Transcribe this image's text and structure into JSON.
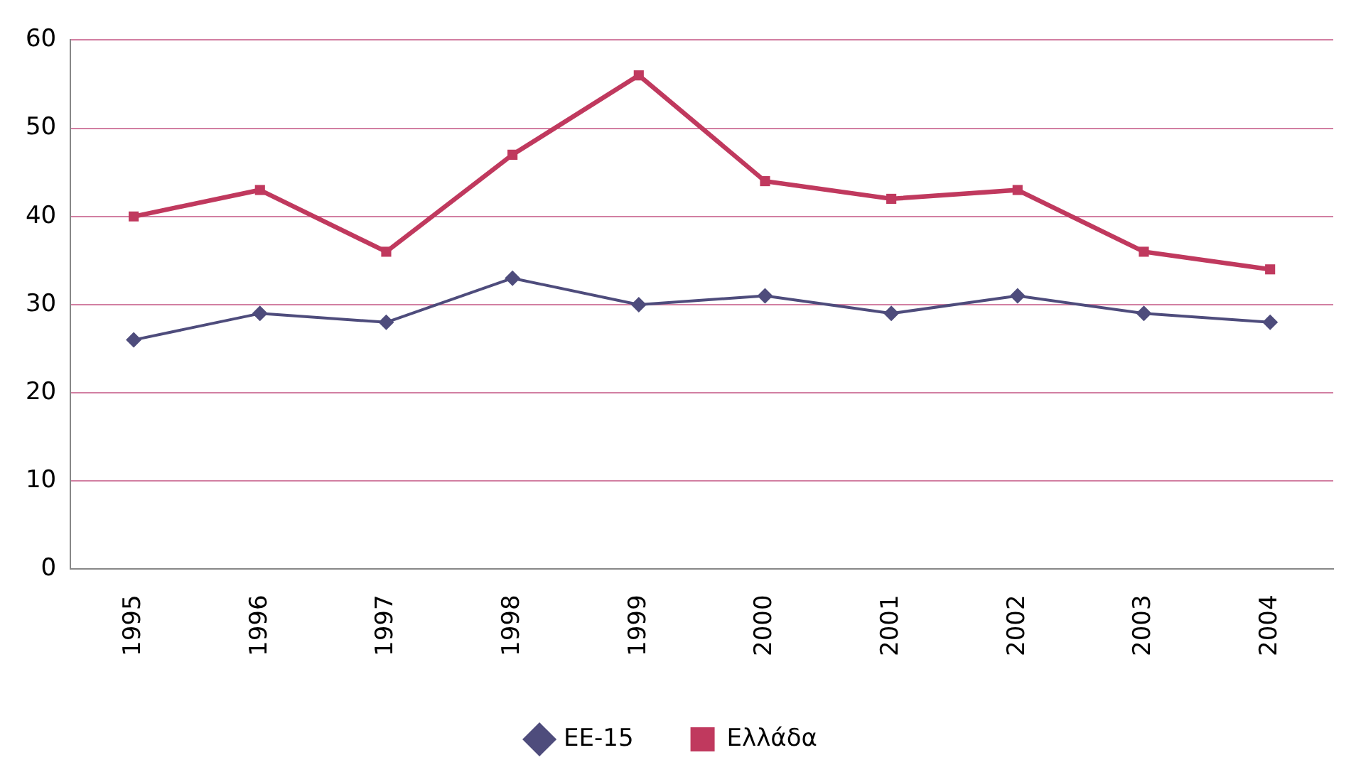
{
  "chart_data": {
    "type": "line",
    "categories": [
      "1995",
      "1996",
      "1997",
      "1998",
      "1999",
      "2000",
      "2001",
      "2002",
      "2003",
      "2004"
    ],
    "series": [
      {
        "name": "ΕΕ-15",
        "color": "#4e4c7c",
        "marker": "diamond",
        "values": [
          26,
          29,
          28,
          33,
          30,
          31,
          29,
          31,
          29,
          28
        ]
      },
      {
        "name": "Ελλάδα",
        "color": "#c0395e",
        "marker": "square",
        "values": [
          40,
          43,
          36,
          47,
          56,
          44,
          42,
          43,
          36,
          34
        ]
      }
    ],
    "ylim": [
      0,
      60
    ],
    "yticks": [
      0,
      10,
      20,
      30,
      40,
      50,
      60
    ],
    "grid": "y",
    "legend": "bottom",
    "line_style": "solid"
  }
}
